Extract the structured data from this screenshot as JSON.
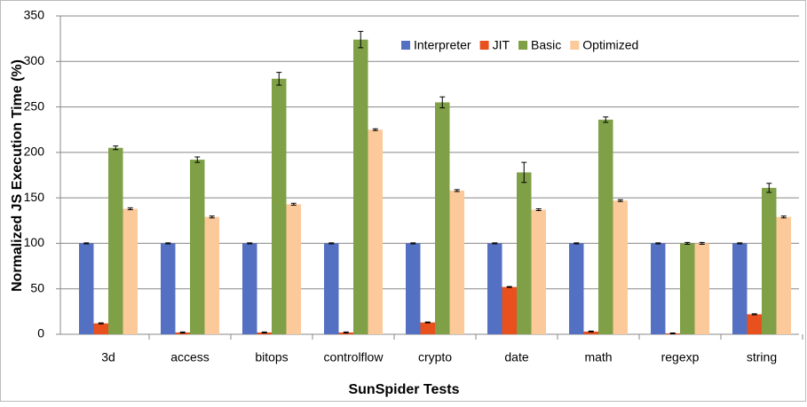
{
  "chart_data": {
    "type": "bar",
    "y_label": "Normalized JS Execution Time (%)",
    "x_label": "SunSpider Tests",
    "categories": [
      "3d",
      "access",
      "bitops",
      "controlflow",
      "crypto",
      "date",
      "math",
      "regexp",
      "string"
    ],
    "series": [
      {
        "name": "Interpreter",
        "color": "#5470c2",
        "values": [
          100,
          100,
          100,
          100,
          100,
          100,
          100,
          100,
          100
        ],
        "errors": [
          0.5,
          0.5,
          0.5,
          0.5,
          0.5,
          0.5,
          0.5,
          0.5,
          0.5
        ]
      },
      {
        "name": "JIT",
        "color": "#e8501e",
        "values": [
          12,
          2,
          2,
          2,
          13,
          52,
          3,
          1,
          22
        ],
        "errors": [
          0.5,
          0.5,
          0.5,
          0.5,
          0.5,
          0.5,
          0.5,
          0.5,
          0.5
        ]
      },
      {
        "name": "Basic",
        "color": "#7fa046",
        "values": [
          205,
          192,
          281,
          324,
          255,
          178,
          236,
          100,
          161
        ],
        "errors": [
          2,
          3,
          7,
          9,
          6,
          11,
          3,
          1,
          5
        ]
      },
      {
        "name": "Optimized",
        "color": "#fcc99a",
        "values": [
          138,
          129,
          143,
          225,
          158,
          137,
          147,
          100,
          129
        ],
        "errors": [
          1,
          1,
          1,
          1,
          1,
          1,
          1,
          1,
          1
        ]
      }
    ],
    "ylim": [
      0,
      350
    ],
    "yticks": [
      0,
      50,
      100,
      150,
      200,
      250,
      300,
      350
    ],
    "grid": true,
    "legend": "top"
  }
}
